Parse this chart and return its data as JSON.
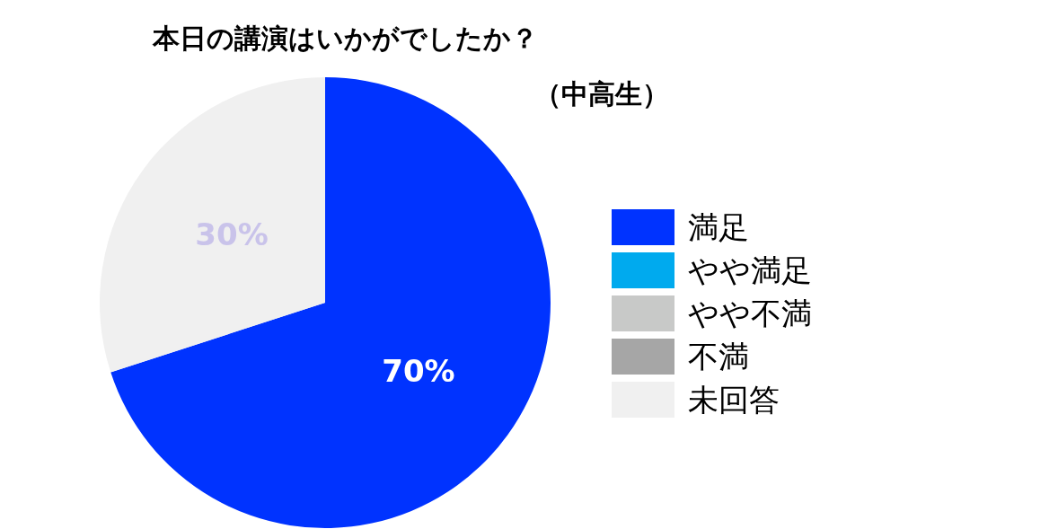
{
  "chart_data": {
    "type": "pie",
    "title": "本日の講演はいかがでしたか？",
    "subtitle": "（中高生）",
    "categories": [
      "満足",
      "やや満足",
      "やや不満",
      "不満",
      "未回答"
    ],
    "values": [
      70,
      0,
      0,
      0,
      30
    ],
    "colors": [
      "#0033ff",
      "#00aaee",
      "#c8c9c8",
      "#a6a6a6",
      "#f0f0f0"
    ],
    "value_labels": [
      "70%",
      null,
      null,
      null,
      "30%"
    ],
    "legend": "right"
  }
}
